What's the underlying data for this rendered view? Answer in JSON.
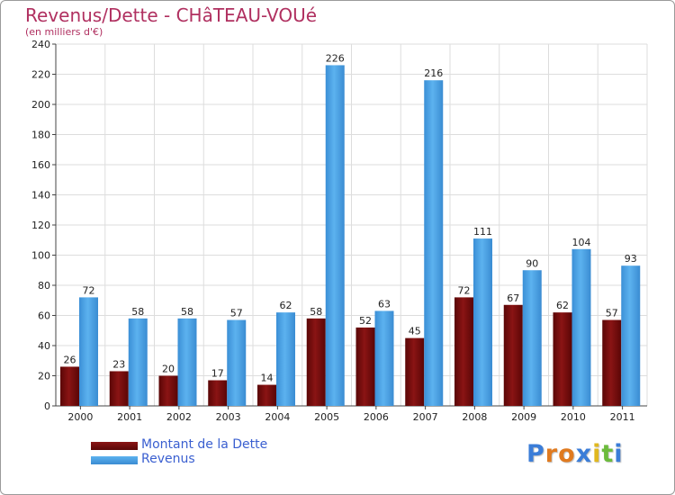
{
  "chart_data": {
    "type": "bar",
    "title": "Revenus/Dette - CHâTEAU-VOUé",
    "subtitle": "(en milliers d'€)",
    "categories": [
      "2000",
      "2001",
      "2002",
      "2003",
      "2004",
      "2005",
      "2006",
      "2007",
      "2008",
      "2009",
      "2010",
      "2011"
    ],
    "series": [
      {
        "name": "Montant de la Dette",
        "color": "#7a0a0a",
        "values": [
          26,
          23,
          20,
          17,
          14,
          58,
          52,
          45,
          72,
          67,
          62,
          57
        ]
      },
      {
        "name": "Revenus",
        "color": "#4aa3e6",
        "values": [
          72,
          58,
          58,
          57,
          62,
          226,
          63,
          216,
          111,
          90,
          104,
          93
        ]
      }
    ],
    "ylim": [
      0,
      240
    ],
    "yticks": [
      0,
      20,
      40,
      60,
      80,
      100,
      120,
      140,
      160,
      180,
      200,
      220,
      240
    ],
    "grid": true,
    "legend_position": "bottom-left"
  },
  "branding": {
    "logo_letters": [
      {
        "ch": "P",
        "color": "#3b7dd8"
      },
      {
        "ch": "r",
        "color": "#e07a1f"
      },
      {
        "ch": "o",
        "color": "#e07a1f"
      },
      {
        "ch": "x",
        "color": "#3b7dd8"
      },
      {
        "ch": "i",
        "color": "#e0b81f"
      },
      {
        "ch": "t",
        "color": "#6cbb3c"
      },
      {
        "ch": "i",
        "color": "#3b7dd8"
      }
    ]
  }
}
